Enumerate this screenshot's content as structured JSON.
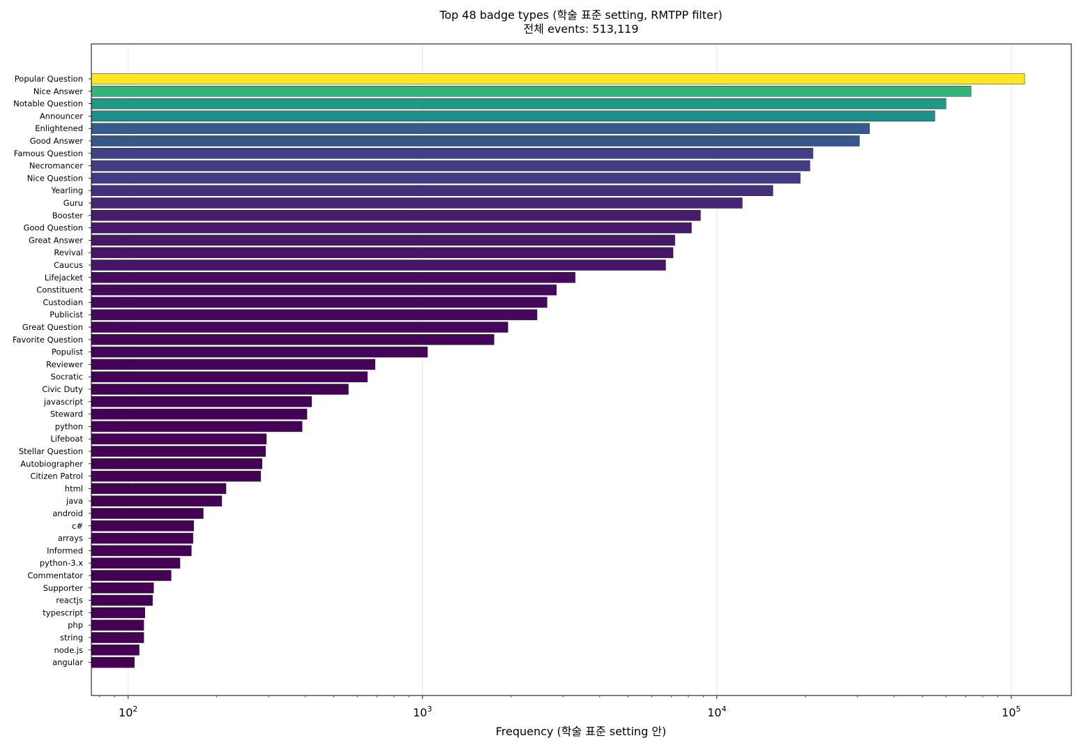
{
  "chart_data": {
    "type": "bar",
    "orientation": "horizontal",
    "title": "Top 48 badge types (학술 표준 setting, RMTPP filter)",
    "subtitle": "전체 events: 513,119",
    "xlabel": "Frequency (학술 표준 setting 안)",
    "ylabel": "",
    "xscale": "log",
    "xlim": [
      75,
      160000
    ],
    "grid": "x-major",
    "colormap": "viridis",
    "x_ticks": [
      {
        "base": "10",
        "exp": "2",
        "value": 100
      },
      {
        "base": "10",
        "exp": "3",
        "value": 1000
      },
      {
        "base": "10",
        "exp": "4",
        "value": 10000
      },
      {
        "base": "10",
        "exp": "5",
        "value": 100000
      }
    ],
    "categories": [
      "Popular Question",
      "Nice Answer",
      "Notable Question",
      "Announcer",
      "Enlightened",
      "Good Answer",
      "Famous Question",
      "Necromancer",
      "Nice Question",
      "Yearling",
      "Guru",
      "Booster",
      "Good Question",
      "Great Answer",
      "Revival",
      "Caucus",
      "Lifejacket",
      "Constituent",
      "Custodian",
      "Publicist",
      "Great Question",
      "Favorite Question",
      "Populist",
      "Reviewer",
      "Socratic",
      "Civic Duty",
      "javascript",
      "Steward",
      "python",
      "Lifeboat",
      "Stellar Question",
      "Autobiographer",
      "Citizen Patrol",
      "html",
      "java",
      "android",
      "c#",
      "arrays",
      "Informed",
      "python-3.x",
      "Commentator",
      "Supporter",
      "reactjs",
      "typescript",
      "php",
      "string",
      "node.js",
      "angular"
    ],
    "values": [
      111000,
      73000,
      60000,
      55000,
      33000,
      30500,
      21200,
      20700,
      19200,
      15500,
      12200,
      8800,
      8200,
      7200,
      7100,
      6700,
      3300,
      2850,
      2650,
      2450,
      1950,
      1750,
      1040,
      690,
      650,
      560,
      420,
      405,
      390,
      295,
      293,
      285,
      282,
      215,
      208,
      180,
      167,
      166,
      164,
      150,
      140,
      122,
      121,
      114,
      113,
      113,
      109,
      105
    ]
  }
}
